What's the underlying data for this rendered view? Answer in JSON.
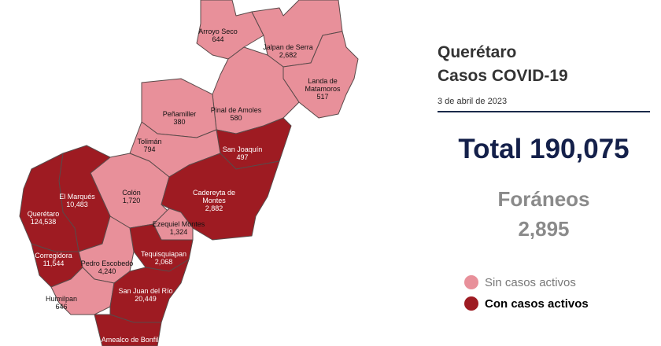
{
  "title": "Querétaro",
  "subtitle": "Casos COVID-19",
  "date": "3 de abril de 2023",
  "total_label": "Total",
  "total_value": "190,075",
  "foraneos_label": "Foráneos",
  "foraneos_value": "2,895",
  "legend": [
    {
      "label": "Sin casos activos",
      "color": "#e8909a"
    },
    {
      "label": "Con casos activos",
      "color": "#9e1b22"
    }
  ],
  "regions": [
    {
      "name": "Arroyo Seco",
      "value": "644",
      "color": "#e8909a"
    },
    {
      "name": "Jalpan de Serra",
      "value": "2,682",
      "color": "#e8909a"
    },
    {
      "name": "Landa de Matamoros",
      "value": "517",
      "color": "#e8909a"
    },
    {
      "name": "Pinal de Amoles",
      "value": "580",
      "color": "#e8909a"
    },
    {
      "name": "Peñamiller",
      "value": "380",
      "color": "#e8909a"
    },
    {
      "name": "San Joaquín",
      "value": "497",
      "color": "#9e1b22"
    },
    {
      "name": "Tolimán",
      "value": "794",
      "color": "#e8909a"
    },
    {
      "name": "Colón",
      "value": "1,720",
      "color": "#e8909a"
    },
    {
      "name": "El Marqués",
      "value": "10,483",
      "color": "#9e1b22"
    },
    {
      "name": "Querétaro",
      "value": "124,538",
      "color": "#9e1b22"
    },
    {
      "name": "Cadereyta de Montes",
      "value": "2,882",
      "color": "#9e1b22"
    },
    {
      "name": "Ezequiel Montes",
      "value": "1,324",
      "color": "#e8909a"
    },
    {
      "name": "Tequisquiapan",
      "value": "2,068",
      "color": "#9e1b22"
    },
    {
      "name": "Pedro Escobedo",
      "value": "4,240",
      "color": "#e8909a"
    },
    {
      "name": "Corregidora",
      "value": "11,544",
      "color": "#9e1b22"
    },
    {
      "name": "Huimilpan",
      "value": "646",
      "color": "#e8909a"
    },
    {
      "name": "San Juan del Río",
      "value": "20,449",
      "color": "#9e1b22"
    },
    {
      "name": "Amealco de Bonfil",
      "color": "#9e1b22"
    }
  ]
}
